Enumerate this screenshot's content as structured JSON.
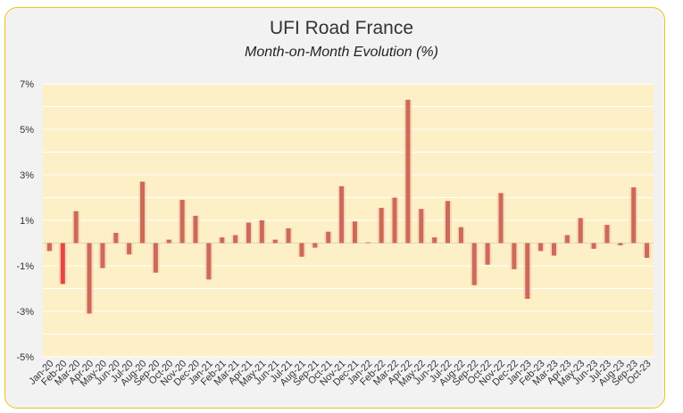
{
  "chart_data": {
    "type": "bar",
    "title": "UFI Road France",
    "subtitle": "Month-on-Month Evolution (%)",
    "xlabel": "",
    "ylabel": "",
    "ylim": [
      -5,
      7
    ],
    "yticks": [
      7,
      5,
      3,
      1,
      -1,
      -3,
      -5
    ],
    "ytick_labels": [
      "7%",
      "5%",
      "3%",
      "1%",
      "-1%",
      "-3%",
      "-5%"
    ],
    "categories": [
      "Jan-20",
      "Feb-20",
      "Mar-20",
      "Apr-20",
      "May-20",
      "Jun-20",
      "Jul-20",
      "Aug-20",
      "Sep-20",
      "Oct-20",
      "Nov-20",
      "Dec-20",
      "Jan-21",
      "Feb-21",
      "Mar-21",
      "Apr-21",
      "May-21",
      "Jun-21",
      "Jul-21",
      "Aug-21",
      "Sep-21",
      "Oct-21",
      "Nov-21",
      "Dec-21",
      "Jan-22",
      "Feb-22",
      "Mar-22",
      "Apr-22",
      "May-22",
      "Jun-22",
      "Jul-22",
      "Aug-22",
      "Sep-22",
      "Oct-22",
      "Nov-22",
      "Dec-22",
      "Jan-23",
      "Feb-23",
      "Mar-23",
      "Apr-23",
      "May-23",
      "Jun-23",
      "Jul-23",
      "Aug-23",
      "Sep-23",
      "Oct-23"
    ],
    "values": [
      -0.35,
      -1.8,
      1.4,
      -3.1,
      -1.1,
      0.45,
      -0.5,
      2.7,
      -1.3,
      0.15,
      1.9,
      1.2,
      -1.6,
      0.25,
      0.35,
      0.9,
      1.0,
      0.15,
      0.65,
      -0.6,
      -0.2,
      0.5,
      2.5,
      0.95,
      0.0,
      1.55,
      2.0,
      6.3,
      1.5,
      0.25,
      1.85,
      0.7,
      -1.85,
      -0.95,
      2.2,
      -1.15,
      -2.45,
      -0.35,
      -0.55,
      0.35,
      1.1,
      -0.25,
      0.8,
      -0.1,
      2.45,
      -0.65
    ],
    "grid": true,
    "legend": "none",
    "colors": {
      "plot_bg": "#fdf0c6",
      "bar": "#cd6a55",
      "bar_negative_first": "#e8463f",
      "card_border": "#f0c419",
      "grid": "#ffffff"
    }
  }
}
